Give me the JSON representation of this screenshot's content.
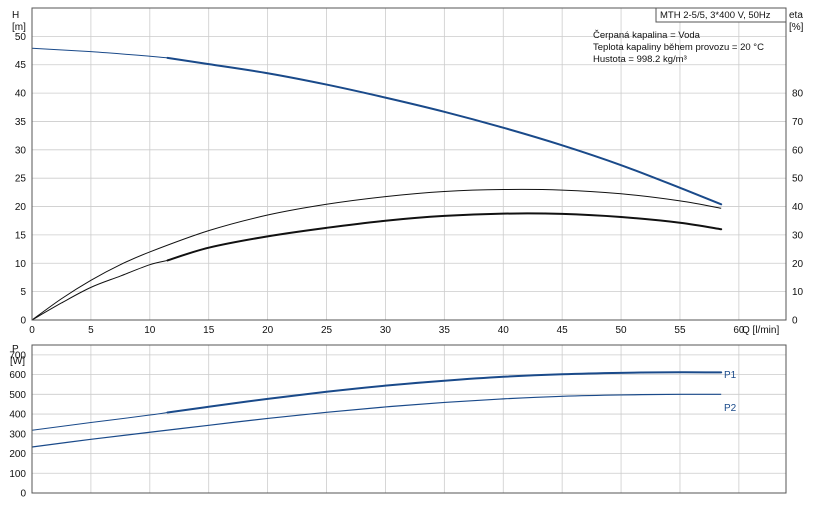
{
  "chart_data": [
    {
      "type": "line",
      "title": "MTH 2-5/5, 3*400 V, 50Hz",
      "notes": [
        "Čerpaná kapalina = Voda",
        "Teplota kapaliny během provozu = 20 °C",
        "Hustota = 998.2 kg/m³"
      ],
      "xlabel": "Q [l/min]",
      "xlim": [
        0,
        64
      ],
      "xticks": [
        0,
        5,
        10,
        15,
        20,
        25,
        30,
        35,
        40,
        45,
        50,
        55,
        60
      ],
      "ylabel_left": "H",
      "ylabel_left_unit": "[m]",
      "ylim_left": [
        0,
        55
      ],
      "yticks_left": [
        0,
        5,
        10,
        15,
        20,
        25,
        30,
        35,
        40,
        45,
        50
      ],
      "ylabel_right": "eta",
      "ylabel_right_unit": "[%]",
      "ylim_right": [
        0,
        110
      ],
      "yticks_right": [
        0,
        10,
        20,
        30,
        40,
        50,
        60,
        70,
        80
      ],
      "grid": true,
      "series": [
        {
          "axis": "left",
          "color": "#1a4a8a",
          "width": 2,
          "x": [
            0,
            5,
            10,
            11.5,
            15,
            20,
            25,
            30,
            35,
            40,
            45,
            50,
            55,
            58.5
          ],
          "values": [
            47.9,
            47.3,
            46.5,
            46.2,
            45.1,
            43.5,
            41.5,
            39.2,
            36.7,
            33.9,
            30.8,
            27.3,
            23.3,
            20.4
          ],
          "solid_from": 11.5
        },
        {
          "axis": "right",
          "color": "#111111",
          "width": 1,
          "x": [
            0,
            2.5,
            5,
            7.5,
            10,
            15,
            20,
            25,
            30,
            35,
            40,
            45,
            50,
            55,
            58.5
          ],
          "values": [
            0,
            7.5,
            14,
            19.5,
            24,
            31.5,
            37,
            40.8,
            43.5,
            45.3,
            46,
            45.8,
            44.5,
            42,
            39.4
          ]
        },
        {
          "axis": "right",
          "color": "#111111",
          "width": 2,
          "x": [
            0,
            2.5,
            5,
            7.5,
            10,
            11.5,
            15,
            20,
            25,
            30,
            35,
            40,
            45,
            50,
            55,
            58.5
          ],
          "values": [
            0,
            6,
            11.5,
            15.5,
            19.5,
            21,
            25.5,
            29.5,
            32.5,
            35,
            36.7,
            37.5,
            37.4,
            36.3,
            34.3,
            32
          ],
          "solid_from": 11.5
        }
      ]
    },
    {
      "type": "line",
      "ylabel": "P",
      "ylabel_unit": "[W]",
      "xlim": [
        0,
        64
      ],
      "ylim": [
        0,
        750
      ],
      "yticks": [
        0,
        100,
        200,
        300,
        400,
        500,
        600,
        700
      ],
      "grid": true,
      "series": [
        {
          "name": "P1",
          "color": "#1a4a8a",
          "width": 2,
          "x": [
            0,
            5,
            10,
            11.5,
            15,
            20,
            25,
            30,
            35,
            40,
            45,
            50,
            55,
            58.5
          ],
          "values": [
            318,
            357,
            395,
            408,
            437,
            477,
            513,
            544,
            569,
            589,
            602,
            609,
            612,
            611
          ],
          "solid_from": 11.5
        },
        {
          "name": "P2",
          "color": "#1a4a8a",
          "width": 1.2,
          "x": [
            0,
            5,
            10,
            15,
            20,
            25,
            30,
            35,
            40,
            45,
            50,
            55,
            58.5
          ],
          "values": [
            233,
            272,
            308,
            343,
            378,
            409,
            436,
            459,
            477,
            490,
            497,
            500,
            500
          ]
        }
      ]
    }
  ]
}
